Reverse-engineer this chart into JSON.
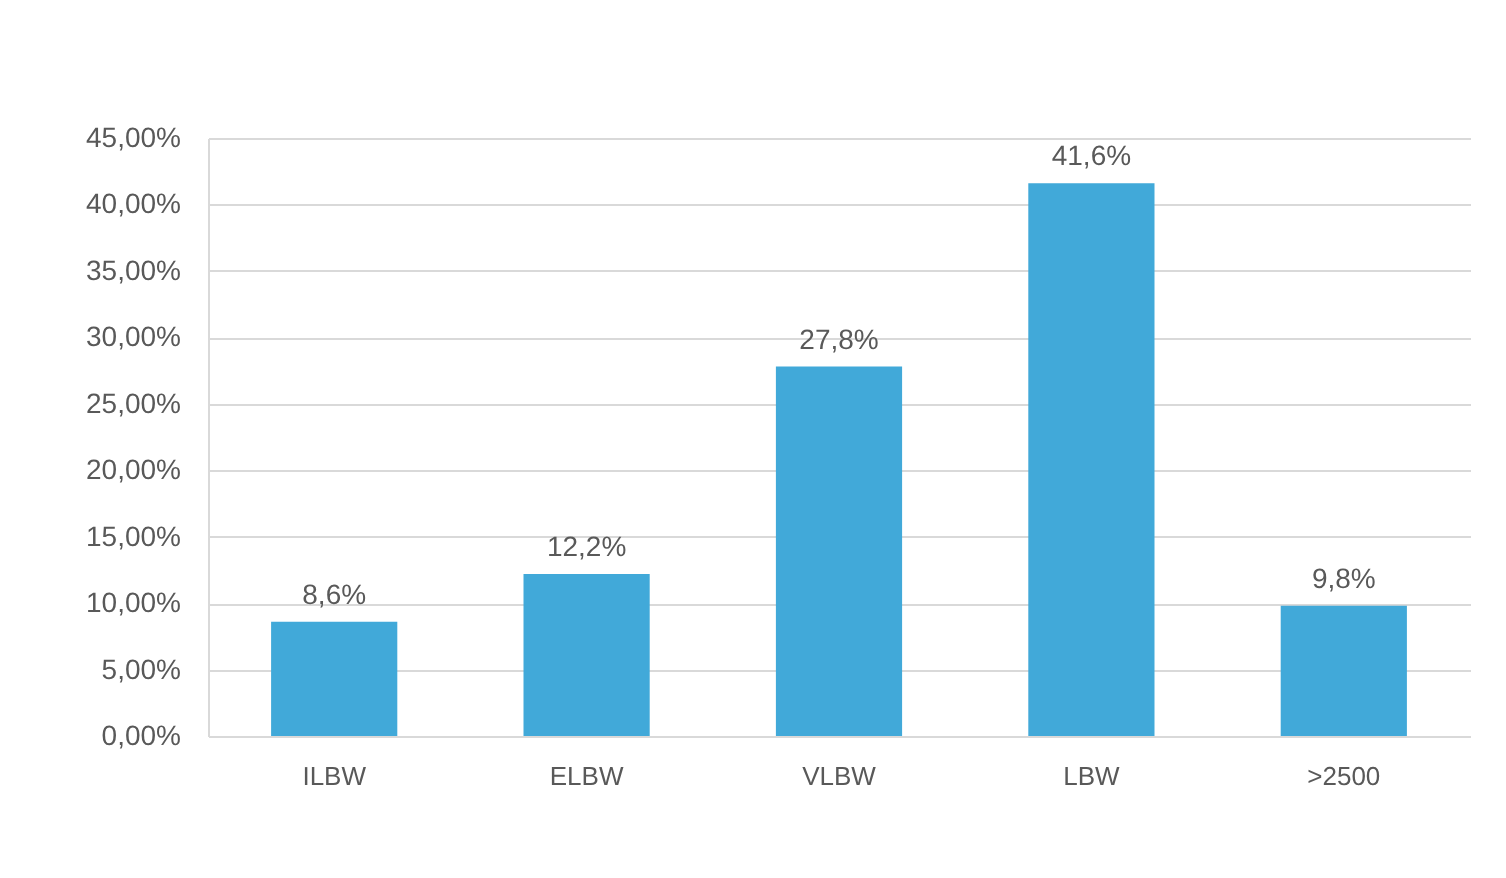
{
  "chart_data": {
    "type": "bar",
    "categories": [
      "ILBW",
      "ELBW",
      "VLBW",
      "LBW",
      ">2500"
    ],
    "values": [
      8.6,
      12.2,
      27.8,
      41.6,
      9.8
    ],
    "color": "#41a9d9",
    "value_labels": [
      "8,6%",
      "12,2%",
      "27,8%",
      "41,6%",
      "9,8%"
    ],
    "ylim": [
      0,
      45
    ],
    "yticks": [
      {
        "value": 0,
        "label": "0,00%"
      },
      {
        "value": 5,
        "label": "5,00%"
      },
      {
        "value": 10,
        "label": "10,00%"
      },
      {
        "value": 15,
        "label": "15,00%"
      },
      {
        "value": 20,
        "label": "20,00%"
      },
      {
        "value": 25,
        "label": "25,00%"
      },
      {
        "value": 30,
        "label": "30,00%"
      },
      {
        "value": 35,
        "label": "35,00%"
      },
      {
        "value": 40,
        "label": "40,00%"
      },
      {
        "value": 45,
        "label": "45,00%"
      }
    ],
    "grid": "y"
  }
}
